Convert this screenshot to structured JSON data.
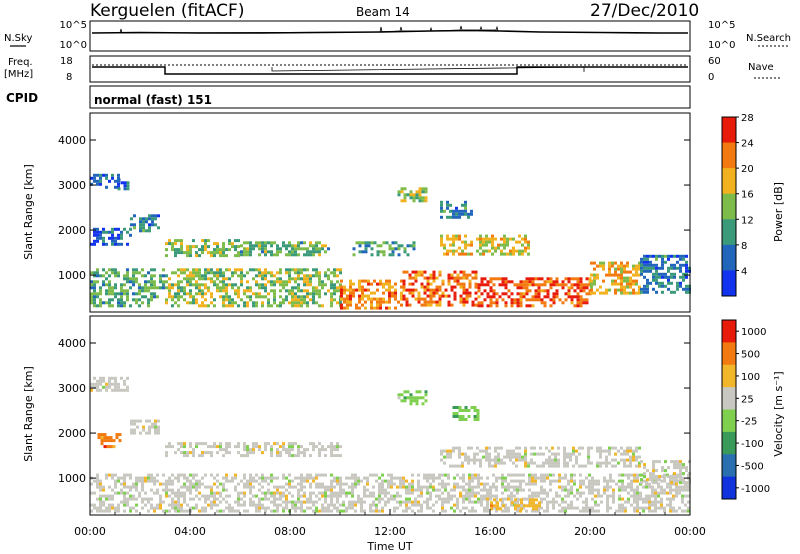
{
  "header": {
    "station": "Kerguelen (fitACF)",
    "beam": "Beam 14",
    "date": "27/Dec/2010"
  },
  "strip_panels": {
    "nsky_label": "N.Sky",
    "nsearch_label": "N.Search",
    "freq_label_line1": "Freq.",
    "freq_label_line2": "[MHz]",
    "nave_label": "Nave",
    "cpid_label": "CPID",
    "cpid_value": "normal (fast) 151",
    "noise_left_ticks": [
      "10^5",
      "10^0"
    ],
    "noise_right_ticks": [
      "10^5",
      "10^0"
    ],
    "freq_ticks": [
      "18",
      "8"
    ],
    "nave_ticks": [
      "60",
      "0"
    ]
  },
  "chart_data": [
    {
      "type": "heatmap",
      "name": "power",
      "ylabel": "Slant Range [km]",
      "ylim": [
        180,
        4600
      ],
      "yticks": [
        1000,
        2000,
        3000,
        4000
      ],
      "colorbar": {
        "label": "Power [dB]",
        "ticks": [
          4,
          8,
          12,
          16,
          20,
          24,
          28
        ],
        "colors": [
          "#1133ee",
          "#2266bb",
          "#3a9a7a",
          "#7dbb4a",
          "#f2b220",
          "#f27a10",
          "#e81a0a"
        ],
        "range": [
          0,
          30
        ]
      },
      "regions": [
        {
          "t": [
            0.0,
            1.1
          ],
          "r": [
            2950,
            3250
          ],
          "v": 5
        },
        {
          "t": [
            1.1,
            1.5
          ],
          "r": [
            2950,
            3150
          ],
          "v": 6
        },
        {
          "t": [
            0.0,
            1.6
          ],
          "r": [
            1700,
            2050
          ],
          "v": 5
        },
        {
          "t": [
            1.6,
            2.8
          ],
          "r": [
            2000,
            2350
          ],
          "v": 8
        },
        {
          "t": [
            0.0,
            3.0
          ],
          "r": [
            300,
            1150
          ],
          "v": 12
        },
        {
          "t": [
            3.0,
            6.0
          ],
          "r": [
            1450,
            1800
          ],
          "v": 14
        },
        {
          "t": [
            6.0,
            9.5
          ],
          "r": [
            1450,
            1750
          ],
          "v": 13
        },
        {
          "t": [
            10.5,
            13.0
          ],
          "r": [
            1450,
            1750
          ],
          "v": 11
        },
        {
          "t": [
            3.0,
            10.0
          ],
          "r": [
            350,
            1150
          ],
          "v": 15
        },
        {
          "t": [
            10.0,
            12.5
          ],
          "r": [
            300,
            900
          ],
          "v": 23
        },
        {
          "t": [
            12.5,
            15.5
          ],
          "r": [
            350,
            1100
          ],
          "v": 24
        },
        {
          "t": [
            15.5,
            20.0
          ],
          "r": [
            300,
            950
          ],
          "v": 26
        },
        {
          "t": [
            20.0,
            22.0
          ],
          "r": [
            600,
            1300
          ],
          "v": 20
        },
        {
          "t": [
            22.0,
            24.0
          ],
          "r": [
            600,
            1450
          ],
          "v": 8
        },
        {
          "t": [
            12.3,
            13.5
          ],
          "r": [
            2650,
            2950
          ],
          "v": 16
        },
        {
          "t": [
            14.0,
            15.3
          ],
          "r": [
            2300,
            2650
          ],
          "v": 9
        },
        {
          "t": [
            14.0,
            17.5
          ],
          "r": [
            1500,
            1900
          ],
          "v": 18
        }
      ]
    },
    {
      "type": "heatmap",
      "name": "velocity",
      "ylabel": "Slant Range [km]",
      "xlabel": "Time UT",
      "ylim": [
        180,
        4600
      ],
      "yticks": [
        1000,
        2000,
        3000,
        4000
      ],
      "x_tick_labels": [
        "00:00",
        "04:00",
        "08:00",
        "12:00",
        "16:00",
        "20:00",
        "00:00"
      ],
      "x_range_hours": [
        0,
        24
      ],
      "colorbar": {
        "label": "Velocity [m s⁻¹]",
        "ticks": [
          "1000",
          "500",
          "100",
          "25",
          "-25",
          "-100",
          "-500",
          "-1000"
        ],
        "colors": [
          "#1133dd",
          "#2a6fb0",
          "#3a9a5a",
          "#80d050",
          "#c8c8c0",
          "#f2b62a",
          "#f27a10",
          "#e81a0a"
        ]
      },
      "regions": [
        {
          "t": [
            0.0,
            1.5
          ],
          "r": [
            2950,
            3250
          ],
          "c": 4
        },
        {
          "t": [
            0.3,
            1.2
          ],
          "r": [
            1700,
            2000
          ],
          "c": 6
        },
        {
          "t": [
            1.6,
            2.8
          ],
          "r": [
            2000,
            2300
          ],
          "c": 4
        },
        {
          "t": [
            3.0,
            10.0
          ],
          "r": [
            1500,
            1800
          ],
          "c": 4
        },
        {
          "t": [
            0.0,
            24.0
          ],
          "r": [
            300,
            1100
          ],
          "c": 4
        },
        {
          "t": [
            12.3,
            13.5
          ],
          "r": [
            2650,
            2950
          ],
          "c": 3
        },
        {
          "t": [
            14.5,
            15.5
          ],
          "r": [
            2300,
            2600
          ],
          "c": 3
        },
        {
          "t": [
            14.0,
            22.0
          ],
          "r": [
            1300,
            1700
          ],
          "c": 4
        },
        {
          "t": [
            16.0,
            18.0
          ],
          "r": [
            350,
            550
          ],
          "c": 5
        },
        {
          "t": [
            22.0,
            24.0
          ],
          "r": [
            900,
            1400
          ],
          "c": 4
        }
      ]
    }
  ]
}
